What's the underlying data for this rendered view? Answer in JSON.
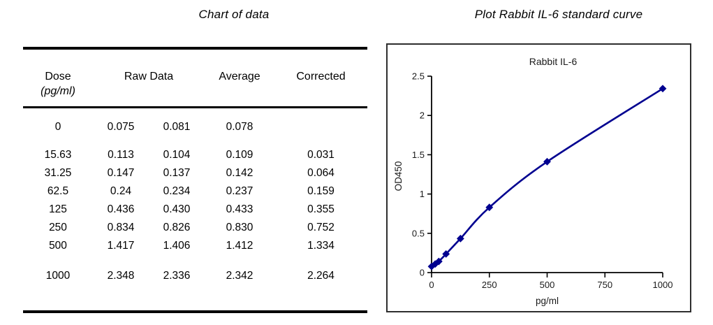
{
  "left_panel": {
    "title": "Chart of data",
    "table": {
      "headers": {
        "dose": "Dose",
        "dose_unit": "(pg/ml)",
        "raw": "Raw Data",
        "average": "Average",
        "corrected": "Corrected"
      },
      "rows": [
        {
          "dose": "0",
          "raw1": "0.075",
          "raw2": "0.081",
          "average": "0.078",
          "corrected": ""
        },
        {
          "dose": "15.63",
          "raw1": "0.113",
          "raw2": "0.104",
          "average": "0.109",
          "corrected": "0.031"
        },
        {
          "dose": "31.25",
          "raw1": "0.147",
          "raw2": "0.137",
          "average": "0.142",
          "corrected": "0.064"
        },
        {
          "dose": "62.5",
          "raw1": "0.24",
          "raw2": "0.234",
          "average": "0.237",
          "corrected": "0.159"
        },
        {
          "dose": "125",
          "raw1": "0.436",
          "raw2": "0.430",
          "average": "0.433",
          "corrected": "0.355"
        },
        {
          "dose": "250",
          "raw1": "0.834",
          "raw2": "0.826",
          "average": "0.830",
          "corrected": "0.752"
        },
        {
          "dose": "500",
          "raw1": "1.417",
          "raw2": "1.406",
          "average": "1.412",
          "corrected": "1.334"
        },
        {
          "dose": "1000",
          "raw1": "2.348",
          "raw2": "2.336",
          "average": "2.342",
          "corrected": "2.264"
        }
      ]
    }
  },
  "right_panel": {
    "title": "Plot Rabbit IL-6 standard curve"
  },
  "chart_data": {
    "type": "line",
    "title": "Rabbit IL-6",
    "xlabel": "pg/ml",
    "ylabel": "OD450",
    "x": [
      0,
      15.63,
      31.25,
      62.5,
      125,
      250,
      500,
      1000
    ],
    "y": [
      0.078,
      0.109,
      0.142,
      0.237,
      0.433,
      0.83,
      1.412,
      2.342
    ],
    "xlim": [
      0,
      1000
    ],
    "ylim": [
      0,
      2.5
    ],
    "x_ticks": [
      0,
      250,
      500,
      750,
      1000
    ],
    "y_ticks": [
      0,
      0.5,
      1,
      1.5,
      2,
      2.5
    ],
    "grid": false,
    "legend": "none",
    "smooth": true,
    "marker": "diamond",
    "line_color": "#000090",
    "axis_color": "#000000"
  }
}
